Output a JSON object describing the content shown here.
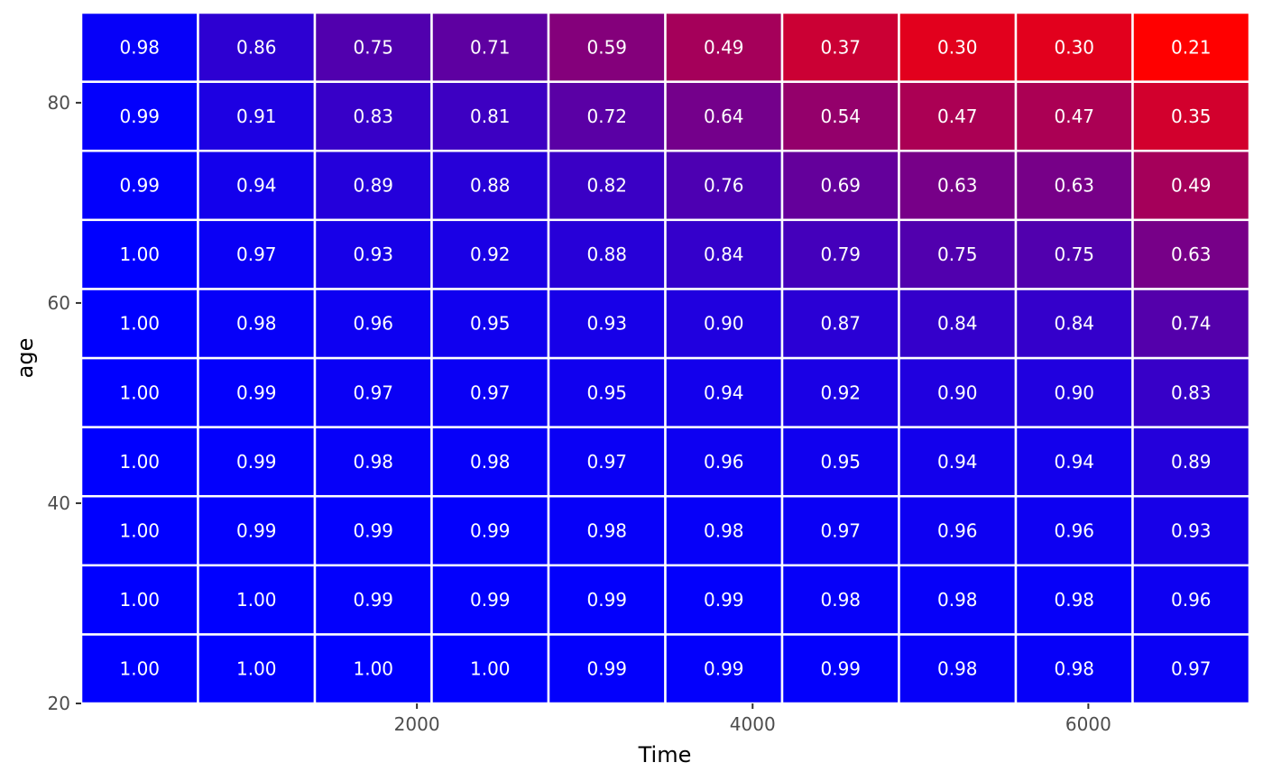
{
  "chart_data": {
    "type": "heatmap",
    "xlabel": "Time",
    "ylabel": "age",
    "x_ticks": [
      2000,
      4000,
      6000
    ],
    "y_ticks": [
      20,
      40,
      60,
      80
    ],
    "xlim": [
      0,
      6960
    ],
    "ylim": [
      20,
      89
    ],
    "x_centers": [
      348,
      1044,
      1740,
      2436,
      3132,
      3828,
      4524,
      5220,
      5916,
      6612
    ],
    "y_centers": [
      23.45,
      30.35,
      37.25,
      44.15,
      51.05,
      57.95,
      64.85,
      71.75,
      78.65,
      85.55
    ],
    "cell_width": 696,
    "cell_height": 6.9,
    "values": [
      [
        1.0,
        1.0,
        1.0,
        1.0,
        0.99,
        0.99,
        0.99,
        0.98,
        0.98,
        0.97
      ],
      [
        1.0,
        1.0,
        0.99,
        0.99,
        0.99,
        0.99,
        0.98,
        0.98,
        0.98,
        0.96
      ],
      [
        1.0,
        0.99,
        0.99,
        0.99,
        0.98,
        0.98,
        0.97,
        0.96,
        0.96,
        0.93
      ],
      [
        1.0,
        0.99,
        0.98,
        0.98,
        0.97,
        0.96,
        0.95,
        0.94,
        0.94,
        0.89
      ],
      [
        1.0,
        0.99,
        0.97,
        0.97,
        0.95,
        0.94,
        0.92,
        0.9,
        0.9,
        0.83
      ],
      [
        1.0,
        0.98,
        0.96,
        0.95,
        0.93,
        0.9,
        0.87,
        0.84,
        0.84,
        0.74
      ],
      [
        1.0,
        0.97,
        0.93,
        0.92,
        0.88,
        0.84,
        0.79,
        0.75,
        0.75,
        0.63
      ],
      [
        0.99,
        0.94,
        0.89,
        0.88,
        0.82,
        0.76,
        0.69,
        0.63,
        0.63,
        0.49
      ],
      [
        0.99,
        0.91,
        0.83,
        0.81,
        0.72,
        0.64,
        0.54,
        0.47,
        0.47,
        0.35
      ],
      [
        0.98,
        0.86,
        0.75,
        0.71,
        0.59,
        0.49,
        0.37,
        0.3,
        0.3,
        0.21
      ]
    ],
    "value_format": "2 decimals",
    "color_scale": {
      "low": "#ff0000",
      "high": "#0000ff",
      "domain": [
        0.21,
        1.0
      ]
    },
    "grid": false,
    "legend": "none"
  }
}
